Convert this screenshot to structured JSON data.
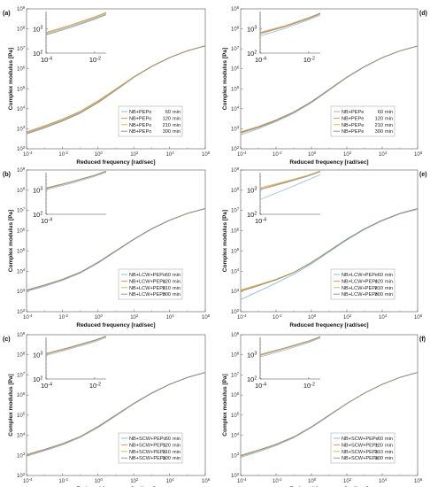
{
  "colors": {
    "s60": "#7fb2d8",
    "s120": "#e0874f",
    "s210": "#c9b84a",
    "s300": "#8c8c8c"
  },
  "chart_data": [
    {
      "type": "line",
      "panel_label": "(a)",
      "xlabel": "Reduced frequency [rad/sec]",
      "ylabel": "Complex modulus [Pa]",
      "xscale": "log",
      "yscale": "log",
      "xlim": [
        0.0001,
        1000000
      ],
      "ylim": [
        100,
        1000000000
      ],
      "xticks": [
        "10-4",
        "10-2",
        "100",
        "102",
        "104",
        "106"
      ],
      "yticks": [
        "102",
        "103",
        "104",
        "105",
        "106",
        "107",
        "108",
        "109"
      ],
      "inset": {
        "xticks": [
          "10-4",
          "10-2"
        ],
        "yticks": [
          "102",
          "103"
        ],
        "xlim": [
          0.0001,
          0.03
        ],
        "ylim": [
          100,
          5000
        ]
      },
      "legend_position": "lower-right",
      "x": [
        0.0001,
        0.001,
        0.01,
        0.1,
        1,
        10,
        100,
        1000,
        10000,
        100000,
        1000000
      ],
      "series": [
        {
          "name": "NB+PEPo",
          "time": "60",
          "unit": "min",
          "values": [
            600,
            1200,
            2600,
            6500,
            22000,
            90000,
            380000,
            1300000,
            3600000,
            8000000,
            14000000
          ]
        },
        {
          "name": "NB+PEPo",
          "time": "120",
          "unit": "min",
          "values": [
            700,
            1400,
            3000,
            7500,
            25000,
            100000,
            400000,
            1350000,
            3700000,
            8200000,
            14500000
          ]
        },
        {
          "name": "NB+PEPo",
          "time": "210",
          "unit": "min",
          "values": [
            650,
            1300,
            2800,
            7000,
            23000,
            95000,
            390000,
            1320000,
            3650000,
            8100000,
            14200000
          ]
        },
        {
          "name": "NB+PEPo",
          "time": "300",
          "unit": "min",
          "values": [
            550,
            1100,
            2400,
            6000,
            20000,
            85000,
            370000,
            1280000,
            3550000,
            7900000,
            13800000
          ]
        }
      ]
    },
    {
      "type": "line",
      "panel_label": "(b)",
      "xlabel": "Reduced frequency [rad/sec]",
      "ylabel": "Complex modulus [Pa]",
      "xscale": "log",
      "yscale": "log",
      "xlim": [
        0.0001,
        1000000
      ],
      "ylim": [
        100,
        1000000000
      ],
      "xticks": [
        "10-4",
        "10-2",
        "100",
        "102",
        "104",
        "106"
      ],
      "yticks": [
        "102",
        "103",
        "104",
        "105",
        "106",
        "107",
        "108",
        "109"
      ],
      "inset": {
        "xticks": [
          "10-4"
        ],
        "yticks": [
          "102",
          "103"
        ],
        "xlim": [
          0.0001,
          0.03
        ],
        "ylim": [
          100,
          5000
        ]
      },
      "legend_position": "lower-right",
      "x": [
        0.0001,
        0.001,
        0.01,
        0.1,
        1,
        10,
        100,
        1000,
        10000,
        100000,
        1000000
      ],
      "series": [
        {
          "name": "NB+LCW+PEPo",
          "time": "60",
          "unit": "min",
          "values": [
            1000,
            1800,
            3500,
            8000,
            25000,
            95000,
            360000,
            1200000,
            3200000,
            7000000,
            12000000
          ]
        },
        {
          "name": "NB+LCW+PEPo",
          "time": "120",
          "unit": "min",
          "values": [
            1100,
            2000,
            3800,
            8500,
            27000,
            100000,
            380000,
            1250000,
            3300000,
            7200000,
            12500000
          ]
        },
        {
          "name": "NB+LCW+PEPo",
          "time": "210",
          "unit": "min",
          "values": [
            1200,
            2100,
            4000,
            9000,
            28000,
            105000,
            390000,
            1270000,
            3350000,
            7300000,
            12700000
          ]
        },
        {
          "name": "NB+LCW+PEPo",
          "time": "300",
          "unit": "min",
          "values": [
            1150,
            2050,
            3900,
            8800,
            27500,
            102000,
            385000,
            1260000,
            3320000,
            7250000,
            12600000
          ]
        }
      ]
    },
    {
      "type": "line",
      "panel_label": "(c)",
      "xlabel": "Reduced frequency [rad/sec]",
      "ylabel": "Complex modulus [Pa]",
      "xscale": "log",
      "yscale": "log",
      "xlim": [
        0.0001,
        1000000
      ],
      "ylim": [
        100,
        1000000000
      ],
      "xticks": [
        "10-4",
        "10-2",
        "100",
        "102",
        "104",
        "106"
      ],
      "yticks": [
        "102",
        "103",
        "104",
        "105",
        "106",
        "107",
        "108",
        "109"
      ],
      "inset": {
        "xticks": [
          "10-4",
          "10-2"
        ],
        "yticks": [
          "102",
          "103"
        ],
        "xlim": [
          0.0001,
          0.03
        ],
        "ylim": [
          100,
          5000
        ]
      },
      "legend_position": "lower-right",
      "x": [
        0.0001,
        0.001,
        0.01,
        0.1,
        1,
        10,
        100,
        1000,
        10000,
        100000,
        1000000
      ],
      "series": [
        {
          "name": "NB+SCW+PEPo",
          "time": "60",
          "unit": "min",
          "values": [
            900,
            1700,
            3300,
            7800,
            24000,
            92000,
            360000,
            1200000,
            3300000,
            7300000,
            13000000
          ]
        },
        {
          "name": "NB+SCW+PEPo",
          "time": "120",
          "unit": "min",
          "values": [
            1000,
            1850,
            3600,
            8200,
            26000,
            98000,
            375000,
            1240000,
            3380000,
            7450000,
            13300000
          ]
        },
        {
          "name": "NB+SCW+PEPo",
          "time": "210",
          "unit": "min",
          "values": [
            1050,
            1950,
            3750,
            8500,
            27000,
            101000,
            383000,
            1260000,
            3420000,
            7520000,
            13400000
          ]
        },
        {
          "name": "NB+SCW+PEPo",
          "time": "300",
          "unit": "min",
          "values": [
            1100,
            2000,
            3850,
            8700,
            27500,
            103000,
            388000,
            1270000,
            3440000,
            7560000,
            13500000
          ]
        }
      ]
    },
    {
      "type": "line",
      "panel_label": "(d)",
      "xlabel": "Reduced frequency [rad/sec]",
      "ylabel": "Complex modulus [Pa]",
      "xscale": "log",
      "yscale": "log",
      "xlim": [
        0.0001,
        1000000
      ],
      "ylim": [
        100,
        1000000000
      ],
      "xticks": [
        "10-4",
        "10-2",
        "100",
        "102",
        "104",
        "106"
      ],
      "yticks": [
        "102",
        "103",
        "104",
        "105",
        "106",
        "107",
        "108",
        "109"
      ],
      "inset": {
        "xticks": [
          "10-4",
          "10-2"
        ],
        "yticks": [
          "102",
          "103"
        ],
        "xlim": [
          0.0001,
          0.03
        ],
        "ylim": [
          100,
          5000
        ]
      },
      "legend_position": "lower-right",
      "x": [
        0.0001,
        0.001,
        0.01,
        0.1,
        1,
        10,
        100,
        1000,
        10000,
        100000,
        1000000
      ],
      "series": [
        {
          "name": "NB+PEPe",
          "time": "60",
          "unit": "min",
          "values": [
            500,
            1000,
            2300,
            6000,
            20000,
            85000,
            360000,
            1250000,
            3500000,
            7800000,
            13500000
          ]
        },
        {
          "name": "NB+PEPe",
          "time": "120",
          "unit": "min",
          "values": [
            700,
            1300,
            2800,
            7000,
            23000,
            95000,
            390000,
            1320000,
            3650000,
            8000000,
            14000000
          ]
        },
        {
          "name": "NB+PEPe",
          "time": "210",
          "unit": "min",
          "values": [
            600,
            1150,
            2500,
            6500,
            21500,
            90000,
            375000,
            1290000,
            3580000,
            7900000,
            13800000
          ]
        },
        {
          "name": "NB+PEPe",
          "time": "300",
          "unit": "min",
          "values": [
            650,
            1200,
            2650,
            6700,
            22000,
            92000,
            380000,
            1300000,
            3600000,
            7950000,
            13900000
          ]
        }
      ]
    },
    {
      "type": "line",
      "panel_label": "(e)",
      "xlabel": "Reduced frequency [rad/sec]",
      "ylabel": "Complex modulus [Pa]",
      "xscale": "log",
      "yscale": "log",
      "xlim": [
        0.0001,
        1000000
      ],
      "ylim": [
        100,
        1000000000
      ],
      "xticks": [
        "10-4",
        "10-2",
        "100",
        "102",
        "104",
        "106"
      ],
      "yticks": [
        "102",
        "103",
        "104",
        "105",
        "106",
        "107",
        "108",
        "109"
      ],
      "inset": {
        "xticks": [
          "10-4"
        ],
        "yticks": [
          "102",
          "103"
        ],
        "xlim": [
          0.0001,
          0.03
        ],
        "ylim": [
          100,
          5000
        ]
      },
      "legend_position": "lower-right",
      "x": [
        0.0001,
        0.001,
        0.01,
        0.1,
        1,
        10,
        100,
        1000,
        10000,
        100000,
        1000000
      ],
      "series": [
        {
          "name": "NB+LCW+PEPe",
          "time": "60",
          "unit": "min",
          "values": [
            400,
            1000,
            2600,
            7000,
            23000,
            90000,
            350000,
            1150000,
            3100000,
            6800000,
            11500000
          ]
        },
        {
          "name": "NB+LCW+PEPe",
          "time": "120",
          "unit": "min",
          "values": [
            1100,
            2000,
            3800,
            8600,
            27000,
            100000,
            380000,
            1250000,
            3300000,
            7200000,
            12500000
          ]
        },
        {
          "name": "NB+LCW+PEPe",
          "time": "210",
          "unit": "min",
          "values": [
            1200,
            2150,
            4050,
            9000,
            28000,
            104000,
            390000,
            1270000,
            3340000,
            7300000,
            12700000
          ]
        },
        {
          "name": "NB+LCW+PEPe",
          "time": "300",
          "unit": "min",
          "values": [
            1000,
            1900,
            3700,
            8400,
            26500,
            99000,
            377000,
            1240000,
            3280000,
            7150000,
            12400000
          ]
        }
      ]
    },
    {
      "type": "line",
      "panel_label": "(f)",
      "xlabel": "Reduced frequency [rad/sec]",
      "ylabel": "Complex modulus [Pa]",
      "xscale": "log",
      "yscale": "log",
      "xlim": [
        0.0001,
        1000000
      ],
      "ylim": [
        100,
        1000000000
      ],
      "xticks": [
        "10-4",
        "10-2",
        "100",
        "102",
        "104",
        "106"
      ],
      "yticks": [
        "102",
        "103",
        "104",
        "105",
        "106",
        "107",
        "108",
        "109"
      ],
      "inset": {
        "xticks": [
          "10-4",
          "10-2"
        ],
        "yticks": [
          "102",
          "103"
        ],
        "xlim": [
          0.0001,
          0.03
        ],
        "ylim": [
          100,
          5000
        ]
      },
      "legend_position": "lower-right",
      "x": [
        0.0001,
        0.001,
        0.01,
        0.1,
        1,
        10,
        100,
        1000,
        10000,
        100000,
        1000000
      ],
      "series": [
        {
          "name": "NB+SCW+PEPe",
          "time": "60",
          "unit": "min",
          "values": [
            800,
            1500,
            3100,
            7500,
            24000,
            93000,
            365000,
            1220000,
            3350000,
            7400000,
            13200000
          ]
        },
        {
          "name": "NB+SCW+PEPe",
          "time": "120",
          "unit": "min",
          "values": [
            900,
            1700,
            3400,
            8000,
            25500,
            97000,
            375000,
            1245000,
            3400000,
            7480000,
            13350000
          ]
        },
        {
          "name": "NB+SCW+PEPe",
          "time": "210",
          "unit": "min",
          "values": [
            950,
            1780,
            3500,
            8200,
            26000,
            99000,
            380000,
            1255000,
            3420000,
            7520000,
            13420000
          ]
        },
        {
          "name": "NB+SCW+PEPe",
          "time": "300",
          "unit": "min",
          "values": [
            1000,
            1850,
            3600,
            8400,
            26500,
            101000,
            385000,
            1265000,
            3440000,
            7560000,
            13480000
          ]
        }
      ]
    }
  ]
}
